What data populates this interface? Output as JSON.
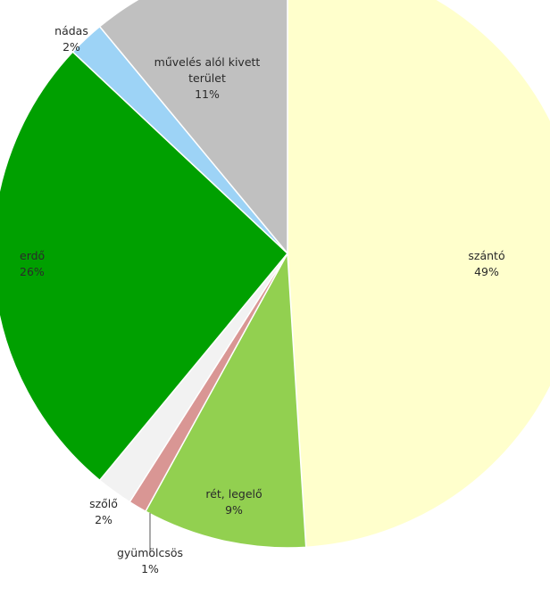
{
  "chart_data": {
    "type": "pie",
    "title": "",
    "legend": "none",
    "slices": [
      {
        "label_lines": [
          "szántó",
          "49%"
        ],
        "value": 49,
        "color": "#ffffcc"
      },
      {
        "label_lines": [
          "rét, legelő",
          "9%"
        ],
        "value": 9,
        "color": "#92d050"
      },
      {
        "label_lines": [
          "gyümölcsös",
          "1%"
        ],
        "value": 1,
        "color": "#d99694"
      },
      {
        "label_lines": [
          "szőlő",
          "2%"
        ],
        "value": 2,
        "color": "#f2f2f2"
      },
      {
        "label_lines": [
          "erdő",
          "26%"
        ],
        "value": 26,
        "color": "#00a000"
      },
      {
        "label_lines": [
          "nádas",
          "2%"
        ],
        "value": 2,
        "color": "#9dd3f6"
      },
      {
        "label_lines": [
          "művelés alól kivett",
          "terület",
          "11%"
        ],
        "value": 11,
        "color": "#c0c0c0"
      }
    ]
  }
}
